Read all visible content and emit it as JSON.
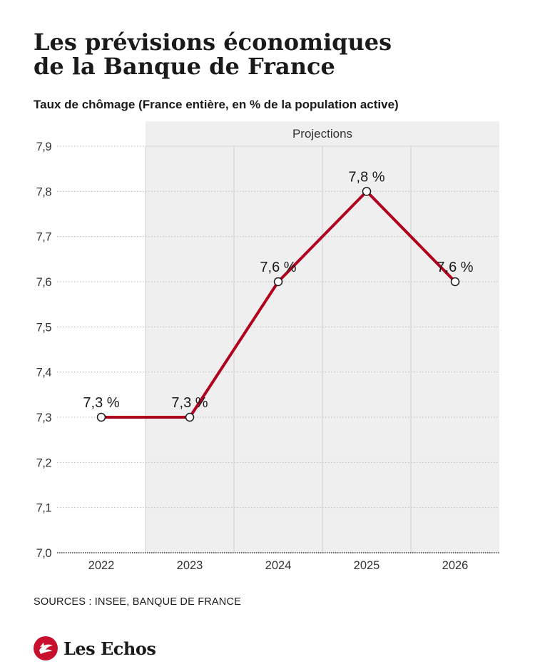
{
  "header": {
    "title_line1": "Les prévisions économiques",
    "title_line2": "de la Banque de France",
    "subtitle": "Taux de chômage (France entière, en % de la population active)"
  },
  "chart_data": {
    "type": "line",
    "title": "Les prévisions économiques de la Banque de France",
    "subtitle": "Taux de chômage (France entière, en % de la population active)",
    "xlabel": "",
    "ylabel": "",
    "x": [
      "2022",
      "2023",
      "2024",
      "2025",
      "2026"
    ],
    "series": [
      {
        "values": [
          7.3,
          7.3,
          7.6,
          7.8,
          7.6
        ]
      }
    ],
    "data_labels": [
      "7,3 %",
      "7,3 %",
      "7,6 %",
      "7,8 %",
      "7,6 %"
    ],
    "y_ticks": [
      "7,0",
      "7,1",
      "7,2",
      "7,3",
      "7,4",
      "7,5",
      "7,6",
      "7,7",
      "7,8",
      "7,9"
    ],
    "ylim": [
      7.0,
      7.9
    ],
    "projection_label": "Projections",
    "projection_start": "2023",
    "grid": true,
    "colors": {
      "line": "#b0001e",
      "projection_band": "#efefef",
      "grid": "#b5b5b5"
    }
  },
  "footer": {
    "sources": "SOURCES : INSEE, BANQUE DE FRANCE",
    "brand": "Les Echos",
    "brand_logo_icon": "les-echos-logo-icon"
  }
}
